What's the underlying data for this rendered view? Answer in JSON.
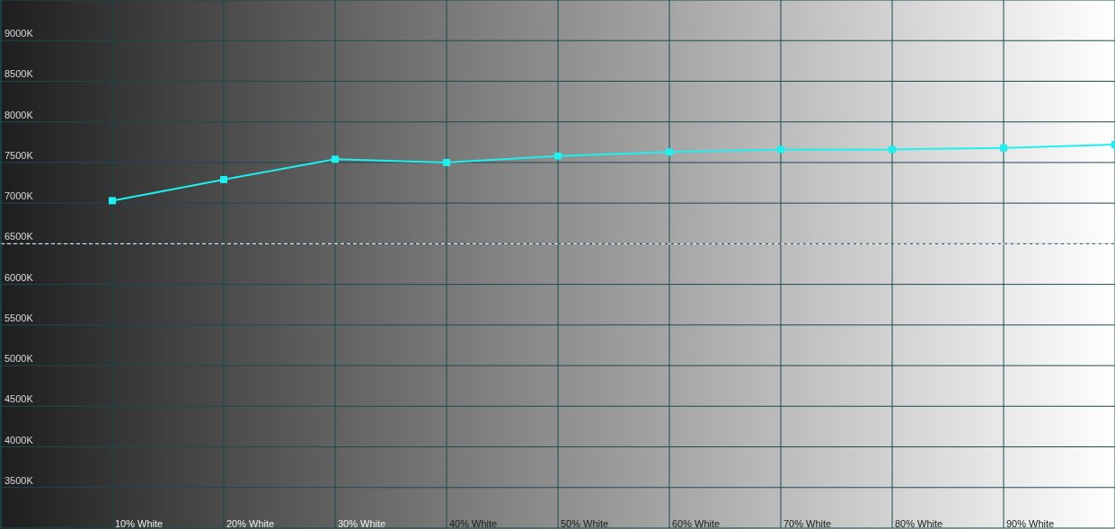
{
  "chart_data": {
    "type": "line",
    "categories": [
      null,
      "10% White",
      "20% White",
      "30% White",
      "40% White",
      "50% White",
      "60% White",
      "70% White",
      "80% White",
      "90% White",
      null
    ],
    "series": [
      {
        "color": "#1ef0f0",
        "values": [
          null,
          7030,
          7290,
          7540,
          7500,
          7580,
          7630,
          7660,
          7660,
          7680,
          7720
        ]
      }
    ],
    "ylim": [
      3000,
      9500
    ],
    "yticks": [
      {
        "value": 3500,
        "label": "3500K"
      },
      {
        "value": 4000,
        "label": "4000K"
      },
      {
        "value": 4500,
        "label": "4500K"
      },
      {
        "value": 5000,
        "label": "5000K"
      },
      {
        "value": 5500,
        "label": "5500K"
      },
      {
        "value": 6000,
        "label": "6000K"
      },
      {
        "value": 6500,
        "label": "6500K"
      },
      {
        "value": 7000,
        "label": "7000K"
      },
      {
        "value": 7500,
        "label": "7500K"
      },
      {
        "value": 8000,
        "label": "8000K"
      },
      {
        "value": 8500,
        "label": "8500K"
      },
      {
        "value": 9000,
        "label": "9000K"
      }
    ],
    "ref_lines": [
      {
        "axis": "y",
        "value": 6500,
        "color": "#ffffff",
        "line_style": "dashed"
      }
    ],
    "grid": true,
    "marker": "square",
    "line_style": "solid"
  }
}
